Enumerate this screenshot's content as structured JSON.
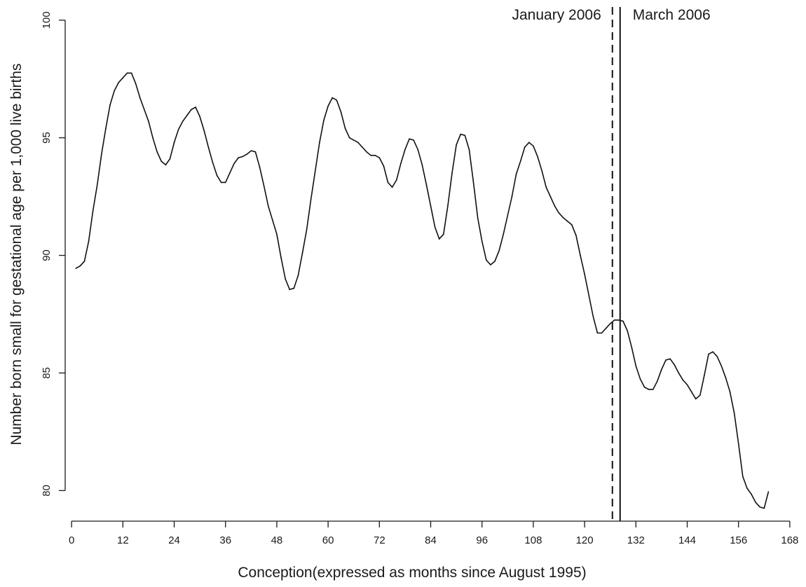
{
  "chart_data": {
    "type": "line",
    "title": "",
    "xlabel": "Conception(expressed as months since August 1995)",
    "ylabel": "Number born small for gestational age per 1,000 live births",
    "xlim": [
      -1.5,
      169
    ],
    "ylim": [
      78.7,
      100.5
    ],
    "x_ticks": [
      0,
      12,
      24,
      36,
      48,
      60,
      72,
      84,
      96,
      108,
      120,
      132,
      144,
      156,
      168
    ],
    "y_ticks": [
      80,
      85,
      90,
      95,
      100
    ],
    "grid": false,
    "legend": "none",
    "vertical_markers": [
      {
        "x": 126.5,
        "label": "January 2006",
        "style": "dashed"
      },
      {
        "x": 128.3,
        "label": "March 2006",
        "style": "solid"
      }
    ],
    "series": [
      {
        "x": [
          1,
          2,
          3,
          4,
          5,
          6,
          7,
          8,
          9,
          10,
          11,
          12,
          13,
          14,
          15,
          16,
          17,
          18,
          19,
          20,
          21,
          22,
          23,
          24,
          25,
          26,
          27,
          28,
          29,
          30,
          31,
          32,
          33,
          34,
          35,
          36,
          37,
          38,
          39,
          40,
          41,
          42,
          43,
          44,
          45,
          46,
          47,
          48,
          49,
          50,
          51,
          52,
          53,
          54,
          55,
          56,
          57,
          58,
          59,
          60,
          61,
          62,
          63,
          64,
          65,
          66,
          67,
          68,
          69,
          70,
          71,
          72,
          73,
          74,
          75,
          76,
          77,
          78,
          79,
          80,
          81,
          82,
          83,
          84,
          85,
          86,
          87,
          88,
          89,
          90,
          91,
          92,
          93,
          94,
          95,
          96,
          97,
          98,
          99,
          100,
          101,
          102,
          103,
          104,
          105,
          106,
          107,
          108,
          109,
          110,
          111,
          112,
          113,
          114,
          115,
          116,
          117,
          118,
          119,
          120,
          121,
          122,
          123,
          124,
          125,
          126,
          127,
          128,
          129,
          130,
          131,
          132,
          133,
          134,
          135,
          136,
          137,
          138,
          139,
          140,
          141,
          142,
          143,
          144,
          145,
          146,
          147,
          148,
          149,
          150,
          151,
          152,
          153,
          154,
          155,
          156,
          157,
          158,
          159,
          160,
          161,
          162,
          163
        ],
        "y": [
          89.45,
          89.55,
          89.75,
          90.6,
          91.9,
          93.0,
          94.3,
          95.4,
          96.4,
          97.0,
          97.35,
          97.55,
          97.75,
          97.75,
          97.3,
          96.7,
          96.2,
          95.7,
          95.0,
          94.4,
          94.0,
          93.85,
          94.1,
          94.8,
          95.35,
          95.7,
          95.95,
          96.2,
          96.3,
          95.9,
          95.3,
          94.6,
          93.95,
          93.4,
          93.1,
          93.1,
          93.5,
          93.9,
          94.15,
          94.2,
          94.3,
          94.45,
          94.4,
          93.75,
          92.95,
          92.1,
          91.5,
          90.9,
          89.9,
          89.0,
          88.55,
          88.6,
          89.15,
          90.1,
          91.1,
          92.4,
          93.6,
          94.8,
          95.75,
          96.35,
          96.7,
          96.6,
          96.1,
          95.4,
          95.0,
          94.9,
          94.8,
          94.6,
          94.4,
          94.25,
          94.25,
          94.15,
          93.8,
          93.1,
          92.9,
          93.2,
          93.9,
          94.5,
          94.95,
          94.9,
          94.5,
          93.85,
          93.0,
          92.1,
          91.2,
          90.7,
          90.9,
          92.1,
          93.5,
          94.7,
          95.15,
          95.1,
          94.5,
          93.1,
          91.6,
          90.6,
          89.8,
          89.6,
          89.75,
          90.2,
          90.9,
          91.7,
          92.5,
          93.45,
          94.0,
          94.6,
          94.8,
          94.65,
          94.2,
          93.6,
          92.9,
          92.5,
          92.1,
          91.8,
          91.6,
          91.45,
          91.3,
          90.85,
          90.0,
          89.2,
          88.3,
          87.4,
          86.7,
          86.7,
          86.9,
          87.1,
          87.25,
          87.25,
          87.2,
          86.8,
          86.1,
          85.3,
          84.75,
          84.4,
          84.3,
          84.3,
          84.65,
          85.15,
          85.55,
          85.6,
          85.35,
          85.0,
          84.7,
          84.5,
          84.2,
          83.9,
          84.05,
          84.9,
          85.8,
          85.9,
          85.7,
          85.3,
          84.8,
          84.2,
          83.3,
          82.0,
          80.6,
          80.1,
          79.85,
          79.5,
          79.3,
          79.25,
          79.95
        ]
      }
    ]
  }
}
